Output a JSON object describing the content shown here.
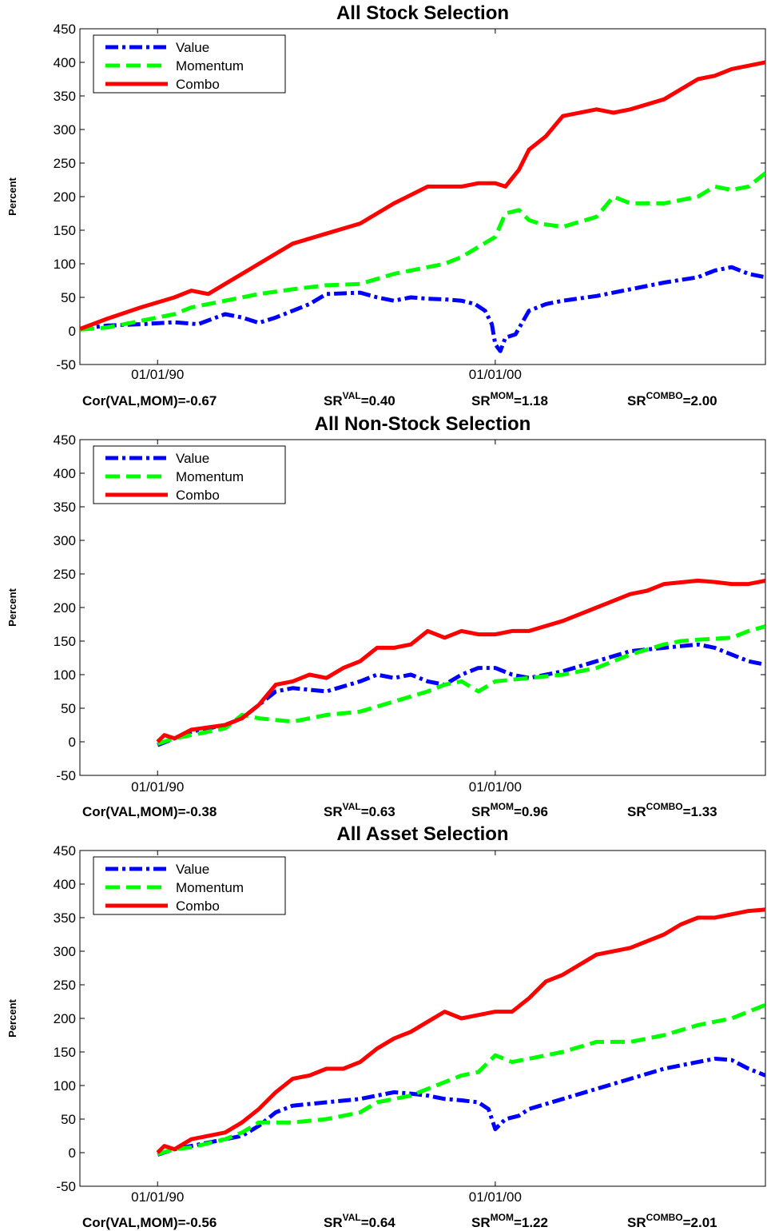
{
  "chart_data": [
    {
      "type": "line",
      "title": "All Stock Selection",
      "ylabel": "Percent",
      "ylim": [
        -50,
        450
      ],
      "yticks": [
        -50,
        0,
        50,
        100,
        150,
        200,
        250,
        300,
        350,
        400,
        450
      ],
      "xticks": [
        {
          "label": "01/01/90",
          "x": 1990.0
        },
        {
          "label": "01/01/00",
          "x": 2000.0
        }
      ],
      "xlim": [
        1987.7,
        2008.0
      ],
      "legend": {
        "position": "top-left"
      },
      "stats": {
        "cor_label": "Cor(VAL,MOM)=",
        "cor": "-0.67",
        "sr_base": "SR",
        "sr_val_sup": "VAL",
        "sr_val": "=0.40",
        "sr_mom_sup": "MOM",
        "sr_mom": "=1.18",
        "sr_combo_sup": "COMBO",
        "sr_combo": "=2.00"
      },
      "series": [
        {
          "name": "Value",
          "color": "#0000ff",
          "dash": "16,5,4,5",
          "x": [
            1987.7,
            1988.5,
            1989.5,
            1990.5,
            1991.2,
            1992.0,
            1992.5,
            1993.0,
            1993.5,
            1994.0,
            1994.5,
            1995.0,
            1995.5,
            1996.0,
            1996.5,
            1997.0,
            1997.5,
            1998.0,
            1998.5,
            1999.0,
            1999.4,
            1999.7,
            1999.9,
            2000.0,
            2000.15,
            2000.3,
            2000.6,
            2001.0,
            2001.5,
            2002.0,
            2003.0,
            2004.0,
            2005.0,
            2006.0,
            2006.5,
            2007.0,
            2007.5,
            2008.0
          ],
          "y": [
            3,
            8,
            10,
            13,
            10,
            25,
            20,
            12,
            20,
            30,
            40,
            55,
            56,
            57,
            50,
            45,
            50,
            48,
            47,
            45,
            40,
            30,
            10,
            -20,
            -30,
            -10,
            -5,
            30,
            40,
            45,
            52,
            62,
            72,
            80,
            90,
            95,
            85,
            80
          ]
        },
        {
          "name": "Momentum",
          "color": "#00ff00",
          "dash": "18,8",
          "x": [
            1987.7,
            1988.5,
            1989.5,
            1990.5,
            1991.0,
            1992.0,
            1993.0,
            1994.0,
            1995.0,
            1996.0,
            1997.0,
            1998.0,
            1998.5,
            1999.0,
            1999.5,
            2000.0,
            2000.3,
            2000.7,
            2001.0,
            2001.3,
            2002.0,
            2003.0,
            2003.5,
            2004.0,
            2005.0,
            2006.0,
            2006.5,
            2007.0,
            2007.5,
            2008.0
          ],
          "y": [
            2,
            5,
            15,
            25,
            35,
            45,
            55,
            62,
            68,
            70,
            85,
            95,
            100,
            110,
            125,
            140,
            175,
            180,
            165,
            160,
            155,
            170,
            200,
            190,
            190,
            200,
            215,
            210,
            215,
            235
          ]
        },
        {
          "name": "Combo",
          "color": "#ff0000",
          "dash": "",
          "x": [
            1987.7,
            1988.5,
            1989.5,
            1990.5,
            1991.0,
            1991.5,
            1992.0,
            1992.5,
            1993.0,
            1994.0,
            1995.0,
            1996.0,
            1997.0,
            1998.0,
            1999.0,
            1999.5,
            2000.0,
            2000.3,
            2000.7,
            2001.0,
            2001.5,
            2002.0,
            2003.0,
            2003.5,
            2004.0,
            2005.0,
            2006.0,
            2006.5,
            2007.0,
            2007.5,
            2008.0
          ],
          "y": [
            3,
            18,
            35,
            50,
            60,
            55,
            70,
            85,
            100,
            130,
            145,
            160,
            190,
            215,
            215,
            220,
            220,
            215,
            240,
            270,
            290,
            320,
            330,
            325,
            330,
            345,
            375,
            380,
            390,
            395,
            400
          ]
        }
      ]
    },
    {
      "type": "line",
      "title": "All Non-Stock Selection",
      "ylabel": "Percent",
      "ylim": [
        -50,
        450
      ],
      "yticks": [
        -50,
        0,
        50,
        100,
        150,
        200,
        250,
        300,
        350,
        400,
        450
      ],
      "xticks": [
        {
          "label": "01/01/90",
          "x": 1990.0
        },
        {
          "label": "01/01/00",
          "x": 2000.0
        }
      ],
      "xlim": [
        1987.7,
        2008.0
      ],
      "legend": {
        "position": "top-left"
      },
      "stats": {
        "cor_label": "Cor(VAL,MOM)=",
        "cor": "-0.38",
        "sr_base": "SR",
        "sr_val_sup": "VAL",
        "sr_val": "=0.63",
        "sr_mom_sup": "MOM",
        "sr_mom": "=0.96",
        "sr_combo_sup": "COMBO",
        "sr_combo": "=1.33"
      },
      "series": [
        {
          "name": "Value",
          "color": "#0000ff",
          "dash": "16,5,4,5",
          "x": [
            1990.0,
            1990.5,
            1991.0,
            1992.0,
            1992.5,
            1993.0,
            1993.5,
            1994.0,
            1995.0,
            1996.0,
            1996.5,
            1997.0,
            1997.5,
            1998.0,
            1998.5,
            1999.0,
            1999.5,
            2000.0,
            2000.5,
            2001.0,
            2002.0,
            2003.0,
            2004.0,
            2005.0,
            2006.0,
            2006.5,
            2007.0,
            2007.5,
            2008.0
          ],
          "y": [
            -5,
            5,
            15,
            25,
            35,
            55,
            75,
            80,
            75,
            90,
            100,
            95,
            100,
            90,
            85,
            100,
            110,
            110,
            100,
            95,
            105,
            120,
            135,
            140,
            145,
            140,
            130,
            120,
            115
          ]
        },
        {
          "name": "Momentum",
          "color": "#00ff00",
          "dash": "18,8",
          "x": [
            1990.0,
            1990.5,
            1991.0,
            1992.0,
            1992.5,
            1993.0,
            1994.0,
            1994.5,
            1995.0,
            1996.0,
            1997.0,
            1998.0,
            1998.5,
            1999.0,
            1999.5,
            2000.0,
            2001.0,
            2002.0,
            2003.0,
            2004.0,
            2005.0,
            2005.5,
            2006.0,
            2007.0,
            2007.5,
            2008.0
          ],
          "y": [
            -3,
            5,
            10,
            20,
            40,
            35,
            30,
            35,
            40,
            45,
            60,
            75,
            85,
            90,
            75,
            90,
            95,
            100,
            110,
            130,
            145,
            150,
            152,
            155,
            165,
            172
          ]
        },
        {
          "name": "Combo",
          "color": "#ff0000",
          "dash": "",
          "x": [
            1990.0,
            1990.2,
            1990.5,
            1991.0,
            1992.0,
            1992.5,
            1993.0,
            1993.5,
            1994.0,
            1994.5,
            1995.0,
            1995.5,
            1996.0,
            1996.5,
            1997.0,
            1997.5,
            1998.0,
            1998.5,
            1999.0,
            1999.5,
            2000.0,
            2000.5,
            2001.0,
            2002.0,
            2003.0,
            2004.0,
            2004.5,
            2005.0,
            2006.0,
            2006.5,
            2007.0,
            2007.5,
            2008.0
          ],
          "y": [
            0,
            10,
            5,
            18,
            25,
            35,
            55,
            85,
            90,
            100,
            95,
            110,
            120,
            140,
            140,
            145,
            165,
            155,
            165,
            160,
            160,
            165,
            165,
            180,
            200,
            220,
            225,
            235,
            240,
            238,
            235,
            235,
            240
          ]
        }
      ]
    },
    {
      "type": "line",
      "title": "All Asset Selection",
      "ylabel": "Percent",
      "ylim": [
        -50,
        450
      ],
      "yticks": [
        -50,
        0,
        50,
        100,
        150,
        200,
        250,
        300,
        350,
        400,
        450
      ],
      "xticks": [
        {
          "label": "01/01/90",
          "x": 1990.0
        },
        {
          "label": "01/01/00",
          "x": 2000.0
        }
      ],
      "xlim": [
        1987.7,
        2008.0
      ],
      "legend": {
        "position": "top-left"
      },
      "stats": {
        "cor_label": "Cor(VAL,MOM)=",
        "cor": "-0.56",
        "sr_base": "SR",
        "sr_val_sup": "VAL",
        "sr_val": "=0.64",
        "sr_mom_sup": "MOM",
        "sr_mom": "=1.22",
        "sr_combo_sup": "COMBO",
        "sr_combo": "=2.01"
      },
      "series": [
        {
          "name": "Value",
          "color": "#0000ff",
          "dash": "16,5,4,5",
          "x": [
            1990.0,
            1990.5,
            1991.0,
            1992.0,
            1992.5,
            1993.0,
            1993.5,
            1994.0,
            1995.0,
            1996.0,
            1996.5,
            1997.0,
            1997.5,
            1998.0,
            1998.5,
            1999.0,
            1999.5,
            1999.8,
            2000.0,
            2000.3,
            2000.7,
            2001.0,
            2002.0,
            2003.0,
            2004.0,
            2005.0,
            2006.0,
            2006.5,
            2007.0,
            2007.5,
            2008.0
          ],
          "y": [
            -3,
            5,
            10,
            20,
            25,
            40,
            60,
            70,
            75,
            80,
            85,
            90,
            88,
            85,
            80,
            78,
            75,
            65,
            35,
            50,
            55,
            65,
            80,
            95,
            110,
            125,
            135,
            140,
            138,
            125,
            115
          ]
        },
        {
          "name": "Momentum",
          "color": "#00ff00",
          "dash": "18,8",
          "x": [
            1990.0,
            1990.5,
            1991.0,
            1992.0,
            1992.5,
            1993.0,
            1994.0,
            1995.0,
            1996.0,
            1996.5,
            1997.0,
            1997.5,
            1998.0,
            1998.5,
            1999.0,
            1999.5,
            2000.0,
            2000.5,
            2001.0,
            2002.0,
            2003.0,
            2004.0,
            2005.0,
            2006.0,
            2006.5,
            2007.0,
            2007.5,
            2008.0
          ],
          "y": [
            -2,
            5,
            8,
            20,
            30,
            45,
            45,
            50,
            60,
            75,
            80,
            85,
            95,
            105,
            115,
            120,
            145,
            135,
            140,
            150,
            165,
            165,
            175,
            190,
            195,
            200,
            210,
            220
          ]
        },
        {
          "name": "Combo",
          "color": "#ff0000",
          "dash": "",
          "x": [
            1990.0,
            1990.2,
            1990.5,
            1991.0,
            1992.0,
            1992.5,
            1993.0,
            1993.5,
            1994.0,
            1994.5,
            1995.0,
            1995.5,
            1996.0,
            1996.5,
            1997.0,
            1997.5,
            1998.0,
            1998.5,
            1999.0,
            1999.5,
            2000.0,
            2000.5,
            2001.0,
            2001.5,
            2002.0,
            2003.0,
            2004.0,
            2005.0,
            2005.5,
            2006.0,
            2006.5,
            2007.0,
            2007.5,
            2008.0
          ],
          "y": [
            0,
            10,
            5,
            20,
            30,
            45,
            65,
            90,
            110,
            115,
            125,
            125,
            135,
            155,
            170,
            180,
            195,
            210,
            200,
            205,
            210,
            210,
            230,
            255,
            265,
            295,
            305,
            325,
            340,
            350,
            350,
            355,
            360,
            362
          ]
        }
      ]
    }
  ]
}
